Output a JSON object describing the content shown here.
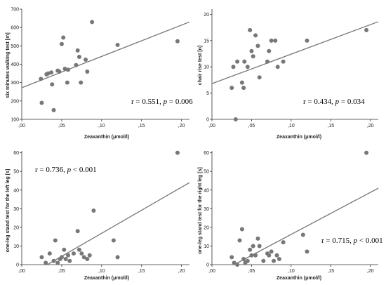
{
  "chart_data": [
    {
      "type": "scatter",
      "title": "",
      "xlabel": "Zeaxanthin (μmol/l)",
      "ylabel": "six minutes walking test [m]",
      "xlim": [
        0.0,
        0.21
      ],
      "ylim": [
        100,
        700
      ],
      "xticks": [
        0.0,
        0.05,
        0.1,
        0.15,
        0.2
      ],
      "xtick_labels": [
        ",00",
        ",05",
        ",10",
        ",15",
        ",20"
      ],
      "yticks": [
        100,
        200,
        300,
        400,
        500,
        600,
        700
      ],
      "ytick_labels": [
        "100",
        "200",
        "300",
        "400",
        "500",
        "600",
        "700"
      ],
      "annotation": {
        "r": "r = 0.551, ",
        "p_sym": "p",
        "p": " = 0.006"
      },
      "fit": {
        "x": [
          0.0,
          0.21
        ],
        "y": [
          272,
          630
        ]
      },
      "points": {
        "x": [
          0.024,
          0.025,
          0.031,
          0.033,
          0.037,
          0.038,
          0.04,
          0.045,
          0.047,
          0.05,
          0.052,
          0.054,
          0.057,
          0.058,
          0.068,
          0.07,
          0.072,
          0.074,
          0.08,
          0.082,
          0.088,
          0.12,
          0.195
        ],
        "y": [
          320,
          190,
          345,
          350,
          355,
          290,
          150,
          365,
          360,
          510,
          545,
          375,
          300,
          370,
          395,
          475,
          440,
          300,
          425,
          360,
          630,
          505,
          525
        ]
      }
    },
    {
      "type": "scatter",
      "title": "",
      "xlabel": "Zeaxanthin (μmol/l)",
      "ylabel": "chair rise test [n]",
      "xlim": [
        0.0,
        0.21
      ],
      "ylim": [
        0,
        21
      ],
      "xticks": [
        0.0,
        0.05,
        0.1,
        0.15,
        0.2
      ],
      "xtick_labels": [
        ",00",
        ",05",
        ",10",
        ",15",
        ",20"
      ],
      "yticks": [
        0,
        5,
        10,
        15,
        20
      ],
      "ytick_labels": [
        "0",
        "5",
        "10",
        "15",
        "20"
      ],
      "annotation": {
        "r": "r = 0.434, ",
        "p_sym": "p",
        "p": " = 0.034"
      },
      "fit": {
        "x": [
          0.0,
          0.21
        ],
        "y": [
          6.8,
          18.6
        ]
      },
      "points": {
        "x": [
          0.025,
          0.027,
          0.03,
          0.032,
          0.038,
          0.04,
          0.041,
          0.045,
          0.048,
          0.05,
          0.052,
          0.055,
          0.058,
          0.06,
          0.07,
          0.072,
          0.075,
          0.08,
          0.083,
          0.09,
          0.12,
          0.195
        ],
        "y": [
          6,
          10,
          0,
          11,
          7,
          6,
          11,
          10,
          17,
          13,
          12,
          16,
          14,
          8,
          11,
          13,
          15,
          15,
          10,
          11,
          15,
          17
        ]
      }
    },
    {
      "type": "scatter",
      "title": "",
      "xlabel": "Zeaxanthin (μmol/l)",
      "ylabel": "one-leg stand test for the left leg [s]",
      "xlim": [
        0.0,
        0.21
      ],
      "ylim": [
        0,
        61
      ],
      "xticks": [
        0.0,
        0.05,
        0.1,
        0.15,
        0.2
      ],
      "xtick_labels": [
        ",00",
        ",05",
        ",10",
        ",15",
        ",20"
      ],
      "yticks": [
        0,
        10,
        20,
        30,
        40,
        50,
        60
      ],
      "ytick_labels": [
        "0",
        "10",
        "20",
        "30",
        "40",
        "50",
        "60"
      ],
      "annotation": {
        "r": "r = 0.736, ",
        "p_sym": "p",
        "p": " < 0.001"
      },
      "fit": {
        "x": [
          0.032,
          0.21
        ],
        "y": [
          0,
          44
        ]
      },
      "points": {
        "x": [
          0.025,
          0.03,
          0.035,
          0.04,
          0.042,
          0.045,
          0.048,
          0.05,
          0.053,
          0.055,
          0.058,
          0.06,
          0.065,
          0.07,
          0.072,
          0.075,
          0.078,
          0.082,
          0.085,
          0.09,
          0.115,
          0.12,
          0.195
        ],
        "y": [
          4,
          1,
          6,
          2,
          13,
          1,
          3,
          4,
          8,
          3,
          5,
          2,
          6,
          18,
          8,
          6,
          4,
          3,
          5,
          29,
          13,
          4,
          60
        ]
      }
    },
    {
      "type": "scatter",
      "title": "",
      "xlabel": "Zeaxanthin (μmol/l)",
      "ylabel": "one-leg stand test for the right leg [s]",
      "xlim": [
        0.0,
        0.21
      ],
      "ylim": [
        0,
        61
      ],
      "xticks": [
        0.0,
        0.05,
        0.1,
        0.15,
        0.2
      ],
      "xtick_labels": [
        ",00",
        ",05",
        ",10",
        ",15",
        ",20"
      ],
      "yticks": [
        0,
        10,
        20,
        30,
        40,
        50,
        60
      ],
      "ytick_labels": [
        "0",
        "10",
        "20",
        "30",
        "40",
        "50",
        "60"
      ],
      "annotation": {
        "r": "r = 0.715, ",
        "p_sym": "p",
        "p": " < 0.001"
      },
      "fit": {
        "x": [
          0.028,
          0.21
        ],
        "y": [
          0,
          41
        ]
      },
      "points": {
        "x": [
          0.025,
          0.028,
          0.032,
          0.035,
          0.038,
          0.04,
          0.042,
          0.045,
          0.048,
          0.05,
          0.052,
          0.055,
          0.058,
          0.06,
          0.065,
          0.07,
          0.072,
          0.075,
          0.078,
          0.082,
          0.085,
          0.09,
          0.115,
          0.12,
          0.195
        ],
        "y": [
          4,
          1,
          0,
          13,
          19,
          3,
          1,
          2,
          8,
          5,
          10,
          5,
          14,
          10,
          2,
          6,
          5,
          7,
          2,
          5,
          3,
          12,
          16,
          7,
          60
        ]
      }
    }
  ]
}
